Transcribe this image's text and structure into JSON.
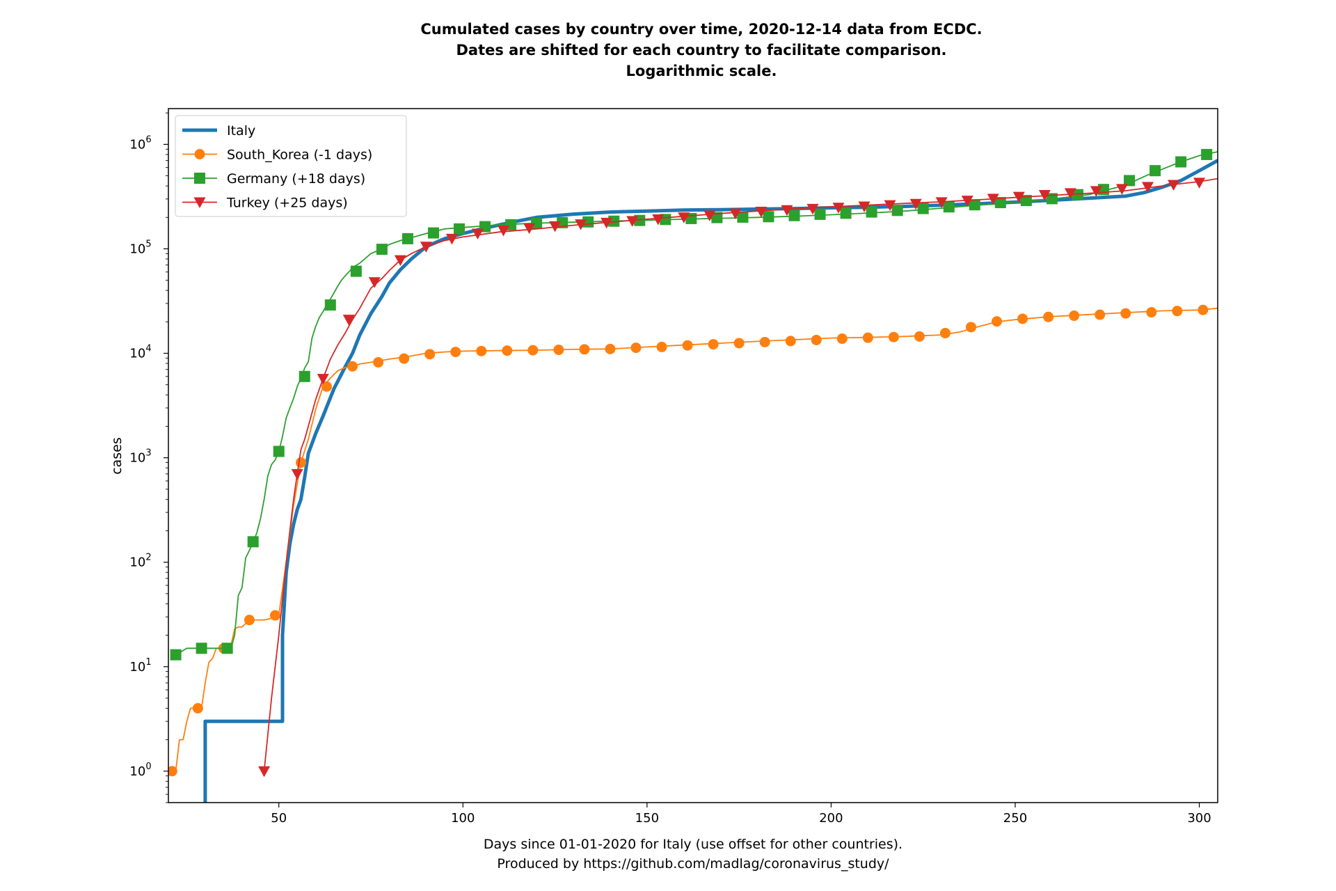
{
  "chart_data": {
    "type": "line",
    "title": [
      "Cumulated cases by country over time, 2020-12-14 data from ECDC.",
      "Dates are shifted for each country to facilitate comparison.",
      "Logarithmic scale."
    ],
    "xlabel": [
      "Days since 01-01-2020 for Italy (use offset for other countries).",
      "Produced by https://github.com/madlag/coronavirus_study/"
    ],
    "ylabel": "cases",
    "xlim": [
      20,
      305
    ],
    "ylim": [
      0.5,
      2200000
    ],
    "yscale": "log",
    "grid": false,
    "legend_position": "top-left",
    "x_ticks": [
      {
        "value": 50,
        "label": "50"
      },
      {
        "value": 100,
        "label": "100"
      },
      {
        "value": 150,
        "label": "150"
      },
      {
        "value": 200,
        "label": "200"
      },
      {
        "value": 250,
        "label": "250"
      },
      {
        "value": 300,
        "label": "300"
      }
    ],
    "y_ticks": [
      {
        "value": 1,
        "exp": "0"
      },
      {
        "value": 10,
        "exp": "1"
      },
      {
        "value": 100,
        "exp": "2"
      },
      {
        "value": 1000,
        "exp": "3"
      },
      {
        "value": 10000,
        "exp": "4"
      },
      {
        "value": 100000,
        "exp": "5"
      },
      {
        "value": 1000000,
        "exp": "6"
      }
    ],
    "y_tick_base": "10",
    "series": [
      {
        "name": "Italy",
        "color": "#1f77b4",
        "marker": "none",
        "x": [
          30,
          30,
          51,
          51,
          52,
          53,
          54,
          55,
          56,
          57,
          58,
          60,
          62,
          65,
          68,
          70,
          72,
          75,
          78,
          80,
          83,
          86,
          90,
          95,
          100,
          105,
          110,
          115,
          120,
          130,
          140,
          150,
          160,
          170,
          180,
          190,
          200,
          210,
          220,
          230,
          240,
          250,
          260,
          270,
          280,
          285,
          290,
          295,
          300,
          305
        ],
        "y": [
          0.5,
          3,
          3,
          20,
          80,
          150,
          230,
          320,
          400,
          650,
          1100,
          1700,
          2500,
          4600,
          7400,
          10000,
          15000,
          24000,
          35000,
          47000,
          63000,
          80000,
          105000,
          125000,
          140000,
          155000,
          170000,
          185000,
          200000,
          215000,
          225000,
          230000,
          235000,
          237000,
          240000,
          243000,
          247000,
          250000,
          255000,
          262000,
          270000,
          280000,
          292000,
          305000,
          320000,
          345000,
          390000,
          450000,
          560000,
          700000
        ]
      },
      {
        "name": "South_Korea (-1 days)",
        "color": "#ff7f0e",
        "marker": "circle",
        "x": [
          20,
          21,
          22,
          23,
          24,
          25,
          26,
          27,
          28,
          29,
          30,
          31,
          32,
          33,
          34,
          35,
          36,
          37,
          38,
          39,
          40,
          42,
          44,
          46,
          48,
          50,
          52,
          54,
          56,
          58,
          60,
          62,
          64,
          66,
          68,
          70,
          72,
          75,
          80,
          85,
          90,
          95,
          100,
          110,
          120,
          130,
          140,
          150,
          160,
          170,
          180,
          190,
          200,
          210,
          220,
          230,
          235,
          240,
          245,
          250,
          260,
          270,
          280,
          290,
          300,
          305
        ],
        "y": [
          1,
          1,
          1,
          2,
          2,
          3,
          4,
          4,
          4,
          4,
          7,
          11,
          12,
          15,
          15,
          15,
          15,
          16,
          23,
          24,
          24,
          28,
          28,
          28,
          29,
          31,
          100,
          350,
          900,
          1500,
          2900,
          4800,
          5800,
          6800,
          7300,
          7500,
          7900,
          8200,
          8800,
          9300,
          10000,
          10300,
          10500,
          10600,
          10700,
          10900,
          11000,
          11500,
          12000,
          12500,
          13000,
          13500,
          14000,
          14200,
          14500,
          15000,
          16000,
          18000,
          20000,
          21000,
          22500,
          23500,
          24500,
          25500,
          26000,
          27000
        ],
        "marker_x": [
          21,
          28,
          35,
          42,
          49,
          56,
          63,
          70,
          77,
          84,
          91,
          98,
          105,
          112,
          119,
          126,
          133,
          140,
          147,
          154,
          161,
          168,
          175,
          182,
          189,
          196,
          203,
          210,
          217,
          224,
          231,
          238,
          245,
          252,
          259,
          266,
          273,
          280,
          287,
          294,
          301
        ],
        "marker_y": [
          1,
          4,
          15,
          28,
          31,
          900,
          4800,
          7500,
          8200,
          8900,
          9800,
          10300,
          10500,
          10600,
          10700,
          10800,
          10900,
          11000,
          11300,
          11500,
          11900,
          12200,
          12500,
          12800,
          13100,
          13400,
          13800,
          14100,
          14300,
          14500,
          15600,
          17800,
          20200,
          21400,
          22300,
          22900,
          23400,
          24100,
          24700,
          25400,
          26000
        ]
      },
      {
        "name": "Germany (+18 days)",
        "color": "#2ca02c",
        "marker": "square",
        "x": [
          22,
          25,
          30,
          35,
          37,
          38,
          39,
          40,
          41,
          42,
          43,
          44,
          45,
          46,
          47,
          48,
          49,
          50,
          51,
          52,
          53,
          54,
          55,
          56,
          57,
          58,
          59,
          60,
          61,
          62,
          63,
          64,
          65,
          66,
          67,
          68,
          69,
          70,
          72,
          75,
          78,
          80,
          83,
          86,
          90,
          95,
          100,
          110,
          120,
          130,
          140,
          150,
          160,
          170,
          180,
          190,
          200,
          210,
          220,
          230,
          240,
          250,
          260,
          270,
          278,
          282,
          286,
          290,
          295,
          300,
          305
        ],
        "y": [
          13,
          15,
          15,
          15,
          15,
          20,
          48,
          57,
          110,
          130,
          155,
          190,
          260,
          400,
          670,
          860,
          950,
          1150,
          1600,
          2400,
          3000,
          3700,
          4800,
          5800,
          7200,
          8300,
          14000,
          18000,
          22000,
          25000,
          29000,
          33000,
          38000,
          44000,
          50000,
          55000,
          60000,
          66000,
          73000,
          90000,
          100000,
          110000,
          120000,
          128000,
          140000,
          155000,
          160000,
          170000,
          176000,
          180000,
          184000,
          188000,
          192000,
          196000,
          200000,
          205000,
          212000,
          220000,
          230000,
          245000,
          262000,
          280000,
          300000,
          330000,
          390000,
          440000,
          510000,
          580000,
          680000,
          780000,
          850000
        ],
        "marker_x": [
          22,
          29,
          36,
          43,
          50,
          57,
          64,
          71,
          78,
          85,
          92,
          99,
          106,
          113,
          120,
          127,
          134,
          141,
          148,
          155,
          162,
          169,
          176,
          183,
          190,
          197,
          204,
          211,
          218,
          225,
          232,
          239,
          246,
          253,
          260,
          267,
          274,
          281,
          288,
          295,
          302
        ],
        "marker_y": [
          13,
          15,
          15,
          157,
          1150,
          6000,
          29000,
          61000,
          99000,
          125000,
          142000,
          155000,
          163000,
          170000,
          175000,
          178000,
          181000,
          184000,
          187000,
          191000,
          195000,
          199000,
          201000,
          203000,
          208000,
          214000,
          219000,
          225000,
          233000,
          243000,
          252000,
          264000,
          277000,
          290000,
          302000,
          330000,
          370000,
          450000,
          560000,
          680000,
          800000
        ]
      },
      {
        "name": "Turkey (+25 days)",
        "color": "#d62728",
        "marker": "triangle-down",
        "x": [
          46,
          48,
          50,
          52,
          54,
          55,
          56,
          57,
          58,
          60,
          62,
          64,
          66,
          68,
          70,
          72,
          75,
          78,
          80,
          83,
          86,
          90,
          95,
          100,
          110,
          120,
          130,
          140,
          150,
          160,
          170,
          180,
          190,
          200,
          210,
          220,
          230,
          240,
          250,
          260,
          270,
          280,
          285,
          290,
          295,
          300,
          305
        ],
        "y": [
          1,
          5,
          20,
          100,
          400,
          700,
          1200,
          1500,
          2000,
          3600,
          5700,
          8800,
          12000,
          15600,
          21000,
          27000,
          42000,
          52000,
          62000,
          78000,
          90000,
          105000,
          120000,
          130000,
          145000,
          155000,
          168000,
          180000,
          192000,
          205000,
          218000,
          230000,
          242000,
          252000,
          262000,
          272000,
          282000,
          295000,
          310000,
          325000,
          340000,
          360000,
          380000,
          400000,
          420000,
          440000,
          470000
        ],
        "marker_x": [
          46,
          55,
          62,
          69,
          76,
          83,
          90,
          97,
          104,
          111,
          118,
          125,
          132,
          139,
          146,
          153,
          160,
          167,
          174,
          181,
          188,
          195,
          202,
          209,
          216,
          223,
          230,
          237,
          244,
          251,
          258,
          265,
          272,
          279,
          286,
          293,
          300
        ],
        "marker_y": [
          1,
          700,
          5700,
          21000,
          48000,
          78000,
          105000,
          125000,
          140000,
          150000,
          158000,
          165000,
          172000,
          178000,
          185000,
          192000,
          200000,
          209000,
          218000,
          227000,
          235000,
          242000,
          248000,
          255000,
          262000,
          270000,
          280000,
          290000,
          302000,
          315000,
          328000,
          342000,
          358000,
          375000,
          392000,
          410000,
          430000
        ]
      }
    ]
  }
}
